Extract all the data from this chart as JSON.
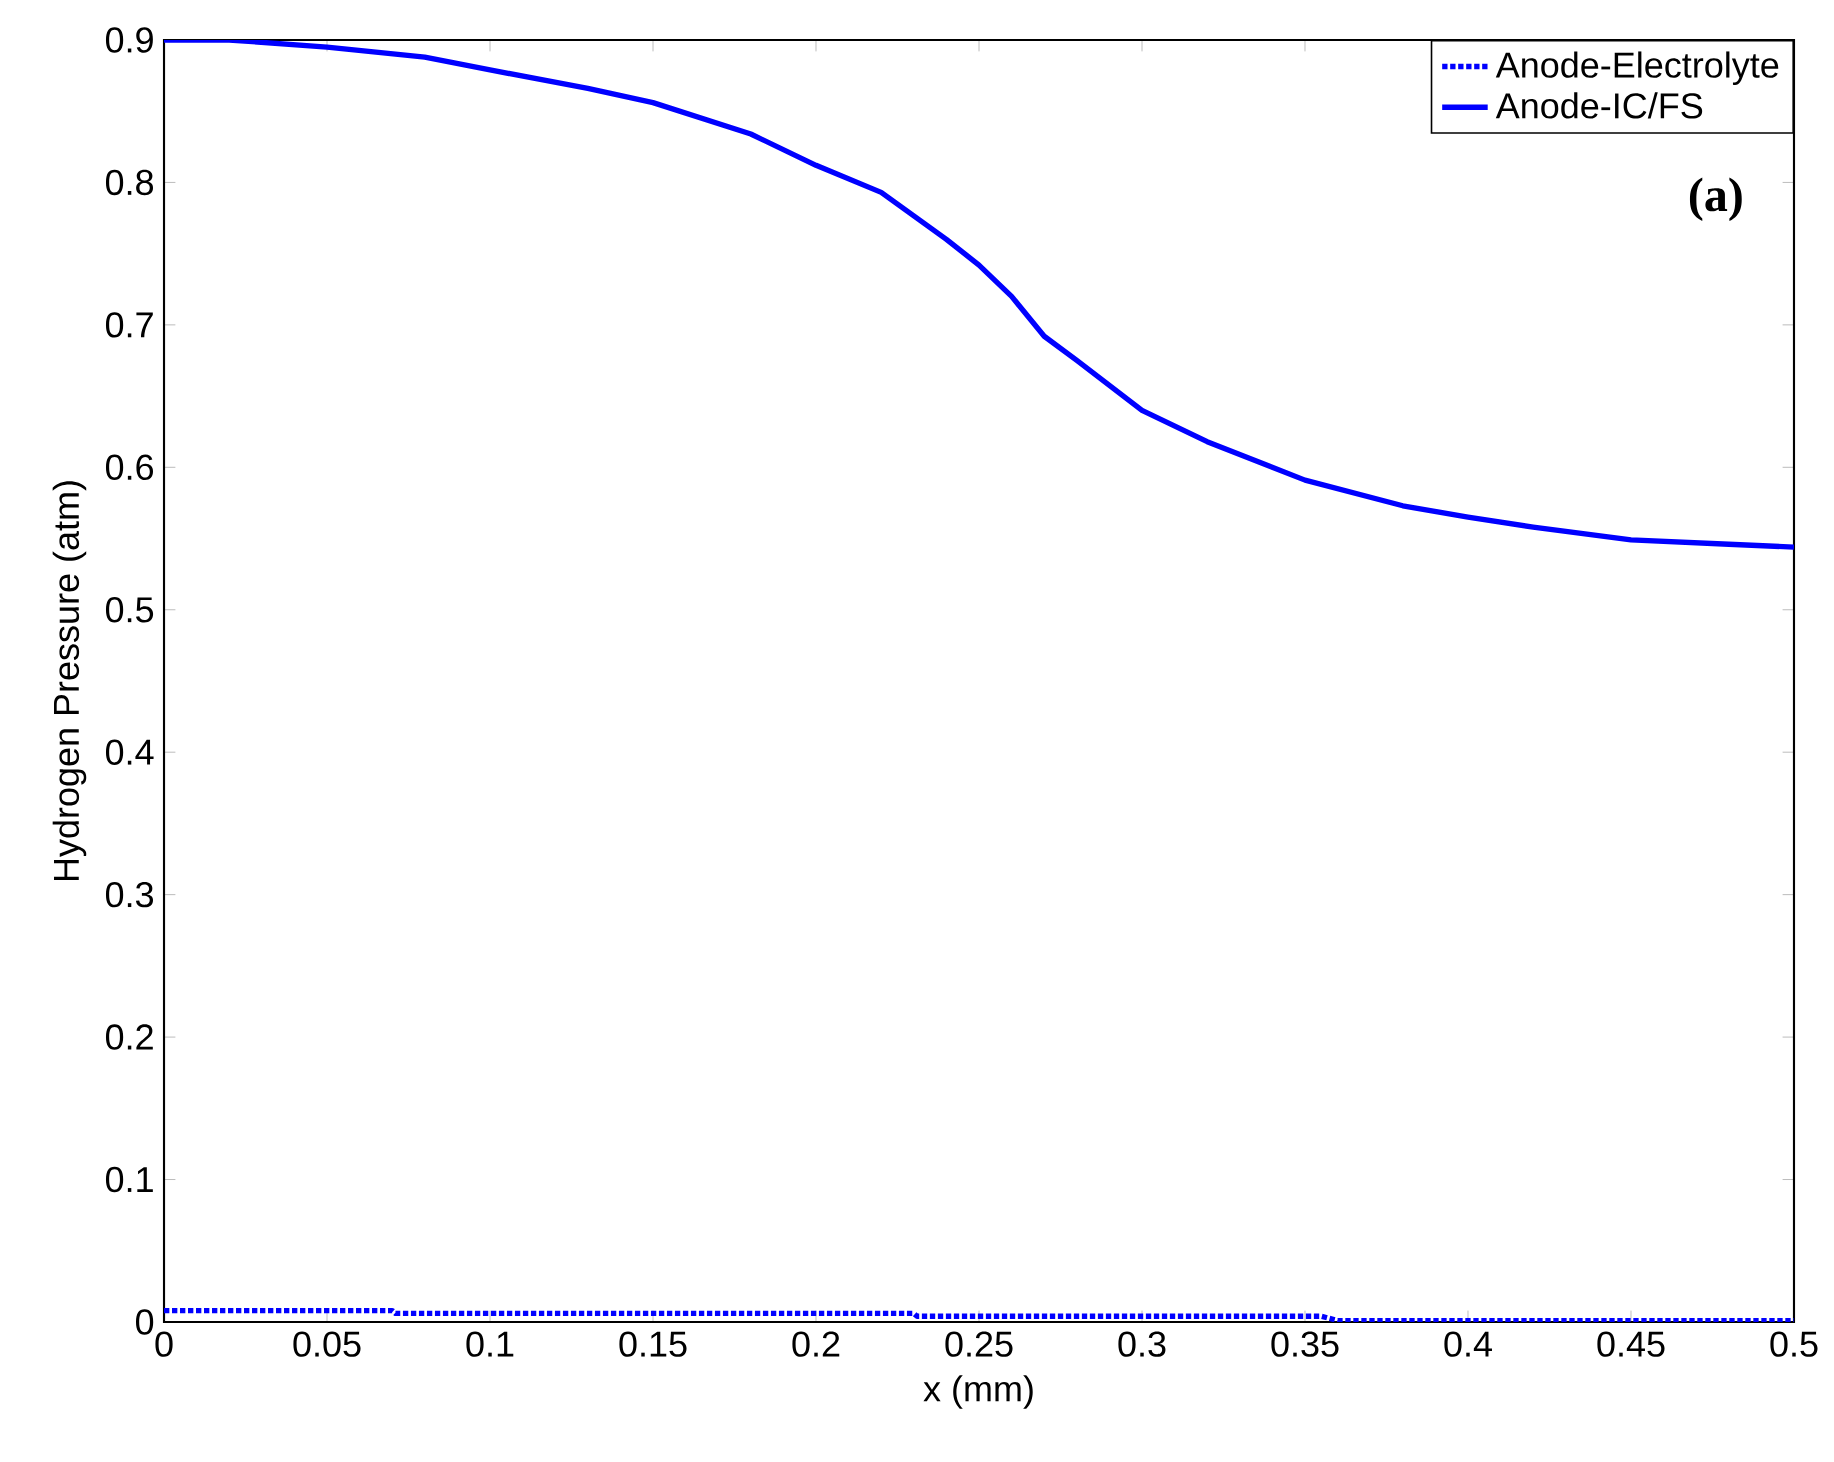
{
  "chart_data": {
    "type": "line",
    "xlabel": "x (mm)",
    "ylabel": "Hydrogen Pressure (atm)",
    "annotations": [
      "(a)"
    ],
    "xlim": [
      0,
      0.5
    ],
    "ylim": [
      0,
      0.9
    ],
    "xticks": [
      0,
      0.05,
      0.1,
      0.15,
      0.2,
      0.25,
      0.3,
      0.35,
      0.4,
      0.45,
      0.5
    ],
    "yticks": [
      0,
      0.1,
      0.2,
      0.3,
      0.4,
      0.5,
      0.6,
      0.7,
      0.8,
      0.9
    ],
    "grid": false,
    "legend": "top right",
    "series": [
      {
        "name": "Anode-Electrolyte",
        "color": "#0000ff",
        "line_style": "dotted",
        "x": [
          0,
          0.07,
          0.071,
          0.23,
          0.231,
          0.355,
          0.36,
          0.5
        ],
        "values": [
          0.008,
          0.008,
          0.006,
          0.006,
          0.004,
          0.004,
          0.001,
          0.001
        ]
      },
      {
        "name": "Anode-IC/FS",
        "color": "#0000ff",
        "line_style": "solid",
        "x": [
          0,
          0.02,
          0.05,
          0.08,
          0.1,
          0.13,
          0.15,
          0.18,
          0.2,
          0.22,
          0.24,
          0.25,
          0.26,
          0.27,
          0.28,
          0.3,
          0.32,
          0.35,
          0.38,
          0.4,
          0.42,
          0.45,
          0.48,
          0.5
        ],
        "values": [
          0.9,
          0.9,
          0.895,
          0.888,
          0.879,
          0.866,
          0.856,
          0.834,
          0.812,
          0.793,
          0.76,
          0.742,
          0.72,
          0.692,
          0.675,
          0.64,
          0.618,
          0.591,
          0.573,
          0.565,
          0.558,
          0.549,
          0.546,
          0.544
        ]
      }
    ]
  }
}
